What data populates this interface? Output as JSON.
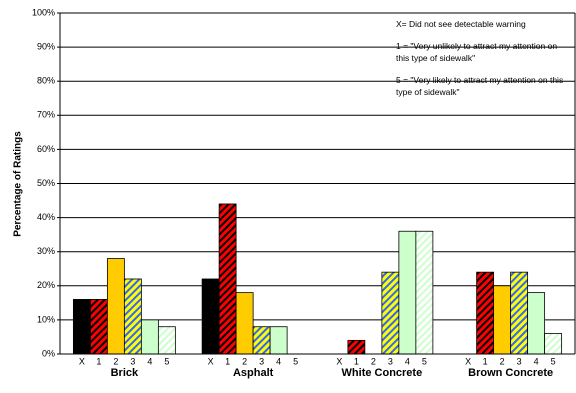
{
  "chart_data": {
    "type": "bar",
    "y_label": "Percentage of Ratings",
    "categories": [
      "Brick",
      "Asphalt",
      "White Concrete",
      "Brown Concrete"
    ],
    "series": [
      {
        "name": "X",
        "color": "#000000",
        "values": [
          16,
          22,
          0,
          0
        ]
      },
      {
        "name": "1",
        "color": "#ff0000",
        "hatch": "#000000",
        "values": [
          16,
          44,
          4,
          24
        ]
      },
      {
        "name": "2",
        "color": "#ffcc00",
        "values": [
          28,
          18,
          0,
          20
        ]
      },
      {
        "name": "3",
        "color": "#ffff00",
        "hatch": "#3366ff",
        "values": [
          22,
          8,
          24,
          24
        ]
      },
      {
        "name": "4",
        "color": "#ccffcc",
        "values": [
          10,
          8,
          36,
          18
        ]
      },
      {
        "name": "5",
        "color": "#ffffff",
        "hatch": "#ccffcc",
        "values": [
          8,
          0,
          36,
          6
        ]
      }
    ],
    "annotations": [
      "X= Did not see detectable warning",
      "1 = \"Very unlikely to attract my attention on this type of sidewalk\"",
      "5 = \"Very likely to attract my attention on this type of sidewalk\""
    ],
    "ylim": [
      0,
      100
    ],
    "yticks": [
      {
        "value": 0,
        "label": "0%"
      },
      {
        "value": 10,
        "label": "10%"
      },
      {
        "value": 20,
        "label": "20%"
      },
      {
        "value": 30,
        "label": "30%"
      },
      {
        "value": 40,
        "label": "40%"
      },
      {
        "value": 50,
        "label": "50%"
      },
      {
        "value": 60,
        "label": "60%"
      },
      {
        "value": 70,
        "label": "70%"
      },
      {
        "value": 80,
        "label": "80%"
      },
      {
        "value": 90,
        "label": "90%"
      },
      {
        "value": 100,
        "label": "100%"
      }
    ],
    "grid": true
  }
}
